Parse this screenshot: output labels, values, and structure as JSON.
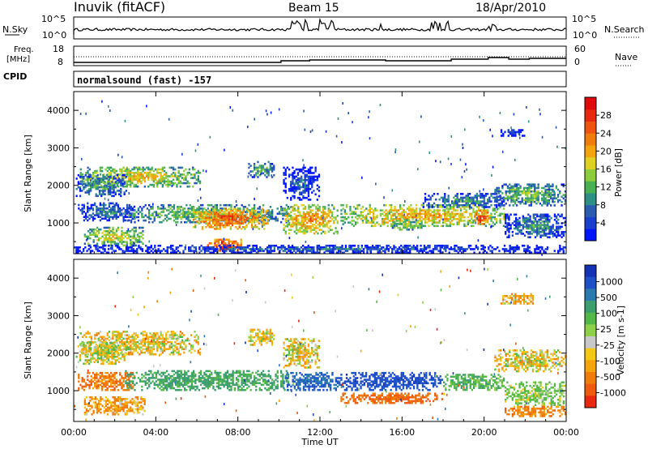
{
  "header": {
    "station": "Inuvik (fitACF)",
    "beam": "Beam 15",
    "date": "18/Apr/2010"
  },
  "sky_panel": {
    "left_label": "N.Sky",
    "left_ticks": [
      "10^5",
      "10^0"
    ],
    "right_label": "N.Search",
    "right_ticks": [
      "10^5",
      "10^0"
    ]
  },
  "freq_panel": {
    "left_label_1": "Freq.",
    "left_label_2": "[MHz]",
    "left_ticks": [
      "18",
      "8"
    ],
    "right_label": "Nave",
    "right_ticks": [
      "60",
      "0"
    ]
  },
  "cpid": {
    "label": "CPID",
    "value": "normalsound (fast) -157"
  },
  "chart_data": [
    {
      "type": "heatmap",
      "name": "power",
      "ylabel": "Slant Range [km]",
      "xlabel": "Time UT",
      "x_ticks": [
        "00:00",
        "04:00",
        "08:00",
        "12:00",
        "16:00",
        "20:00",
        "00:00"
      ],
      "y_ticks": [
        1000,
        2000,
        3000,
        4000
      ],
      "ylim": [
        180,
        4500
      ],
      "xlim_hours": [
        0,
        24
      ],
      "colorbar": {
        "label": "Power [dB]",
        "ticks": [
          "4",
          "8",
          "12",
          "16",
          "20",
          "24",
          "28"
        ],
        "colors": [
          "#0014ff",
          "#1a3fcf",
          "#2a5bb0",
          "#2f8f86",
          "#49b154",
          "#8ccd3d",
          "#e0d020",
          "#f3a40d",
          "#f07d0a",
          "#ee5410",
          "#e8280f",
          "#e00a0a"
        ]
      },
      "blobs": [
        {
          "t0": 0.3,
          "t1": 6.2,
          "r0": 1950,
          "r1": 2500,
          "v": 19
        },
        {
          "t0": 0.1,
          "t1": 2.6,
          "r0": 1700,
          "r1": 2300,
          "v": 13
        },
        {
          "t0": 0.2,
          "t1": 3.0,
          "r0": 1050,
          "r1": 1550,
          "v": 11
        },
        {
          "t0": 0.5,
          "t1": 3.5,
          "r0": 380,
          "r1": 900,
          "v": 18
        },
        {
          "t0": 2.5,
          "t1": 10.5,
          "r0": 1000,
          "r1": 1500,
          "v": 16
        },
        {
          "t0": 5.8,
          "t1": 9.5,
          "r0": 820,
          "r1": 1400,
          "v": 25
        },
        {
          "t0": 6.5,
          "t1": 8.2,
          "r0": 190,
          "r1": 580,
          "v": 28
        },
        {
          "t0": 10.2,
          "t1": 12.9,
          "r0": 700,
          "r1": 1500,
          "v": 22
        },
        {
          "t0": 10.2,
          "t1": 12.0,
          "r0": 1600,
          "r1": 2500,
          "v": 9
        },
        {
          "t0": 13.0,
          "t1": 21.0,
          "r0": 900,
          "r1": 1500,
          "v": 21
        },
        {
          "t0": 15.5,
          "t1": 17.0,
          "r0": 800,
          "r1": 1100,
          "v": 17
        },
        {
          "t0": 17.0,
          "t1": 21.0,
          "r0": 1400,
          "r1": 1800,
          "v": 12
        },
        {
          "t0": 19.5,
          "t1": 20.3,
          "r0": 950,
          "r1": 1350,
          "v": 27
        },
        {
          "t0": 20.5,
          "t1": 24.0,
          "r0": 1450,
          "r1": 2050,
          "v": 15
        },
        {
          "t0": 21.0,
          "t1": 24.0,
          "r0": 600,
          "r1": 1250,
          "v": 12
        },
        {
          "t0": 20.8,
          "t1": 22.0,
          "r0": 3300,
          "r1": 3500,
          "v": 7
        },
        {
          "t0": 8.5,
          "t1": 9.8,
          "r0": 2200,
          "r1": 2650,
          "v": 14
        },
        {
          "t0": 0.0,
          "t1": 24.0,
          "r0": 190,
          "r1": 420,
          "v": 9
        }
      ]
    },
    {
      "type": "heatmap",
      "name": "velocity",
      "ylabel": "Slant Range [km]",
      "xlabel": "Time UT",
      "x_ticks": [
        "00:00",
        "04:00",
        "08:00",
        "12:00",
        "16:00",
        "20:00",
        "00:00"
      ],
      "y_ticks": [
        1000,
        2000,
        3000,
        4000
      ],
      "ylim": [
        180,
        4500
      ],
      "xlim_hours": [
        0,
        24
      ],
      "colorbar": {
        "label": "Velocity [m s-1]",
        "ticks": [
          "1000",
          "500",
          "100",
          "25",
          "-25",
          "-100",
          "-500",
          "-1000"
        ],
        "colors": [
          "#1432b4",
          "#1e50c8",
          "#2a7ab0",
          "#3c9e6e",
          "#54b848",
          "#8ed04a",
          "#c8c8c8",
          "#f5c814",
          "#f5a50a",
          "#f07d0a",
          "#ee5a10",
          "#e8280f"
        ]
      },
      "blobs": [
        {
          "t0": 0.3,
          "t1": 6.2,
          "r0": 1950,
          "r1": 2600,
          "v": 0
        },
        {
          "t0": 0.1,
          "t1": 2.6,
          "r0": 1700,
          "r1": 2300,
          "v": 50
        },
        {
          "t0": 0.2,
          "t1": 3.0,
          "r0": 1000,
          "r1": 1500,
          "v": -200
        },
        {
          "t0": 0.5,
          "t1": 3.5,
          "r0": 350,
          "r1": 850,
          "v": -80
        },
        {
          "t0": 2.5,
          "t1": 10.5,
          "r0": 1000,
          "r1": 1550,
          "v": 300
        },
        {
          "t0": 10.2,
          "t1": 13.0,
          "r0": 1000,
          "r1": 1500,
          "v": 700
        },
        {
          "t0": 13.0,
          "t1": 18.0,
          "r0": 1000,
          "r1": 1500,
          "v": 900
        },
        {
          "t0": 13.0,
          "t1": 18.0,
          "r0": 650,
          "r1": 950,
          "v": -250
        },
        {
          "t0": 18.0,
          "t1": 21.0,
          "r0": 1000,
          "r1": 1450,
          "v": 200
        },
        {
          "t0": 20.5,
          "t1": 24.0,
          "r0": 1500,
          "r1": 2100,
          "v": 0
        },
        {
          "t0": 21.0,
          "t1": 24.0,
          "r0": 600,
          "r1": 1250,
          "v": 120
        },
        {
          "t0": 21.0,
          "t1": 24.0,
          "r0": 300,
          "r1": 600,
          "v": -150
        },
        {
          "t0": 20.8,
          "t1": 22.5,
          "r0": 3300,
          "r1": 3600,
          "v": -50
        },
        {
          "t0": 8.5,
          "t1": 9.8,
          "r0": 2200,
          "r1": 2650,
          "v": 10
        },
        {
          "t0": 10.2,
          "t1": 12.0,
          "r0": 1600,
          "r1": 2400,
          "v": 0
        }
      ]
    }
  ]
}
